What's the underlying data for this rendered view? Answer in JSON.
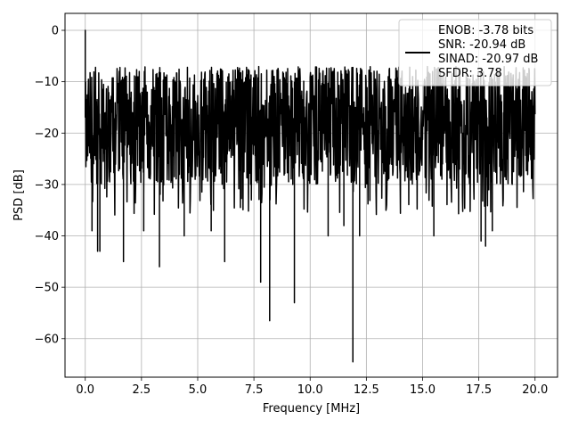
{
  "chart_data": {
    "type": "line",
    "xlabel": "Frequency [MHz]",
    "ylabel": "PSD [dB]",
    "xlim": [
      -0.9,
      21.0
    ],
    "ylim": [
      -67.5,
      3.3
    ],
    "xticks": [
      0.0,
      2.5,
      5.0,
      7.5,
      10.0,
      12.5,
      15.0,
      17.5,
      20.0
    ],
    "xtick_labels": [
      "0.0",
      "2.5",
      "5.0",
      "7.5",
      "10.0",
      "12.5",
      "15.0",
      "17.5",
      "20.0"
    ],
    "yticks": [
      0,
      -10,
      -20,
      -30,
      -40,
      -50,
      -60
    ],
    "ytick_labels": [
      "0",
      "−10",
      "−20",
      "−30",
      "−40",
      "−50",
      "−60"
    ],
    "grid": true,
    "legend_position": "top-right",
    "series": [
      {
        "name": "ENOB: -3.78 bits\nSNR: -20.94 dB\nSINAD: -20.97 dB\nSFDR: 3.78",
        "legend_lines": [
          "ENOB: -3.78 bits",
          "SNR: -20.94 dB",
          "SINAD: -20.97 dB",
          "SFDR: 3.78"
        ],
        "color": "#000000",
        "x_range": [
          0.0,
          20.0
        ],
        "peak": {
          "x": 0.0,
          "y": 0.0
        },
        "typical_band": [
          -30,
          -10
        ],
        "max_level": -7,
        "notable_dips": [
          {
            "x": 0.3,
            "y": -39
          },
          {
            "x": 0.55,
            "y": -43
          },
          {
            "x": 0.65,
            "y": -43
          },
          {
            "x": 1.7,
            "y": -45
          },
          {
            "x": 2.6,
            "y": -39
          },
          {
            "x": 3.3,
            "y": -46
          },
          {
            "x": 4.4,
            "y": -40
          },
          {
            "x": 5.6,
            "y": -39
          },
          {
            "x": 6.2,
            "y": -45
          },
          {
            "x": 7.8,
            "y": -49
          },
          {
            "x": 8.2,
            "y": -56.5
          },
          {
            "x": 9.3,
            "y": -53
          },
          {
            "x": 10.8,
            "y": -40
          },
          {
            "x": 11.5,
            "y": -38
          },
          {
            "x": 11.9,
            "y": -64.5
          },
          {
            "x": 12.2,
            "y": -40
          },
          {
            "x": 15.5,
            "y": -40
          },
          {
            "x": 17.6,
            "y": -41
          },
          {
            "x": 17.8,
            "y": -42
          },
          {
            "x": 18.1,
            "y": -39
          }
        ]
      }
    ]
  }
}
